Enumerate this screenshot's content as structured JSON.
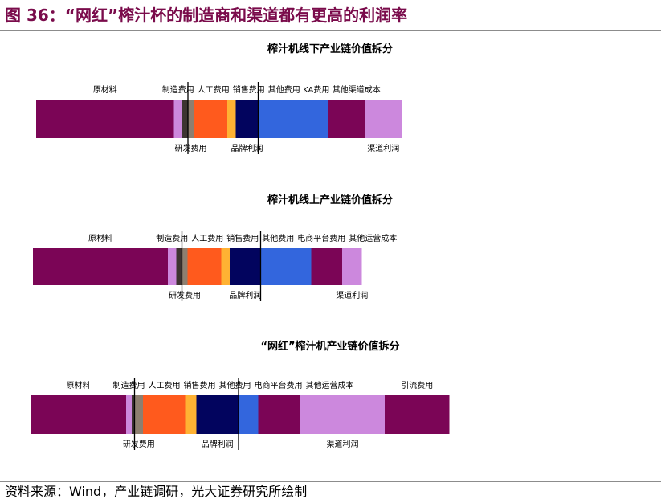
{
  "header": {
    "title": "图 36：“网红”榨汁杯的制造商和渠道都有更高的利润率",
    "source": "资料来源：Wind，产业链调研，光大证券研究所绘制"
  },
  "colors": {
    "purple": "#7b0556",
    "lilac": "#cc88dd",
    "dark": "#3d3431",
    "taupe": "#8d7f70",
    "orange": "#ff5a1d",
    "yellow": "#ffb233",
    "navy": "#02045e",
    "blue": "#3366dd",
    "title": "#7a0b4b"
  },
  "chart_data": [
    {
      "type": "bar",
      "stacked": true,
      "orientation": "horizontal",
      "title": "榨汁机线下产业链价值拆分",
      "segments": [
        {
          "name": "原材料",
          "value": 24.5,
          "color": "purple",
          "label_pos": "top"
        },
        {
          "name": "制造费用",
          "value": 1.5,
          "color": "lilac",
          "label_pos": "top"
        },
        {
          "name": "人工费用",
          "value": 1.0,
          "color": "dark",
          "label_pos": "top"
        },
        {
          "name": "研发费用",
          "value": 1.0,
          "color": "taupe",
          "label_pos": "bottom"
        },
        {
          "name": "销售费用",
          "value": 6.0,
          "color": "orange",
          "label_pos": "top"
        },
        {
          "name": "其他费用",
          "value": 1.5,
          "color": "yellow",
          "label_pos": "top"
        },
        {
          "name": "品牌利润",
          "value": 4.0,
          "color": "navy",
          "label_pos": "bottom"
        },
        {
          "name": "KA费用",
          "value": 12.5,
          "color": "blue",
          "label_pos": "top"
        },
        {
          "name": "其他渠道成本",
          "value": 6.5,
          "color": "purple",
          "label_pos": "top"
        },
        {
          "name": "渠道利润",
          "value": 6.5,
          "color": "lilac",
          "label_pos": "bottom"
        }
      ]
    },
    {
      "type": "bar",
      "stacked": true,
      "orientation": "horizontal",
      "title": "榨汁机线上产业链价值拆分",
      "segments": [
        {
          "name": "原材料",
          "value": 24.0,
          "color": "purple",
          "label_pos": "top"
        },
        {
          "name": "制造费用",
          "value": 1.5,
          "color": "lilac",
          "label_pos": "top"
        },
        {
          "name": "人工费用",
          "value": 1.0,
          "color": "dark",
          "label_pos": "top"
        },
        {
          "name": "研发费用",
          "value": 1.0,
          "color": "taupe",
          "label_pos": "bottom"
        },
        {
          "name": "销售费用",
          "value": 6.0,
          "color": "orange",
          "label_pos": "top"
        },
        {
          "name": "其他费用",
          "value": 1.5,
          "color": "yellow",
          "label_pos": "top"
        },
        {
          "name": "品牌利润",
          "value": 5.5,
          "color": "navy",
          "label_pos": "bottom"
        },
        {
          "name": "电商平台费用",
          "value": 9.0,
          "color": "blue",
          "label_pos": "top"
        },
        {
          "name": "其他运营成本",
          "value": 5.5,
          "color": "purple",
          "label_pos": "top"
        },
        {
          "name": "渠道利润",
          "value": 3.5,
          "color": "lilac",
          "label_pos": "bottom"
        }
      ]
    },
    {
      "type": "bar",
      "stacked": true,
      "orientation": "horizontal",
      "title": "“网红”榨汁机产业链价值拆分",
      "segments": [
        {
          "name": "原材料",
          "value": 17.0,
          "color": "purple",
          "label_pos": "top"
        },
        {
          "name": "制造费用",
          "value": 1.0,
          "color": "lilac",
          "label_pos": "top"
        },
        {
          "name": "人工费用",
          "value": 0.5,
          "color": "dark",
          "label_pos": "top"
        },
        {
          "name": "研发费用",
          "value": 1.5,
          "color": "taupe",
          "label_pos": "bottom"
        },
        {
          "name": "销售费用",
          "value": 7.5,
          "color": "orange",
          "label_pos": "top"
        },
        {
          "name": "其他费用",
          "value": 2.0,
          "color": "yellow",
          "label_pos": "top"
        },
        {
          "name": "品牌利润",
          "value": 7.5,
          "color": "navy",
          "label_pos": "bottom"
        },
        {
          "name": "电商平台费用",
          "value": 3.5,
          "color": "blue",
          "label_pos": "top"
        },
        {
          "name": "其他运营成本",
          "value": 7.5,
          "color": "purple",
          "label_pos": "top"
        },
        {
          "name": "渠道利润",
          "value": 15.0,
          "color": "lilac",
          "label_pos": "bottom"
        },
        {
          "name": "引流费用",
          "value": 11.5,
          "color": "purple",
          "label_pos": "top"
        }
      ]
    }
  ]
}
